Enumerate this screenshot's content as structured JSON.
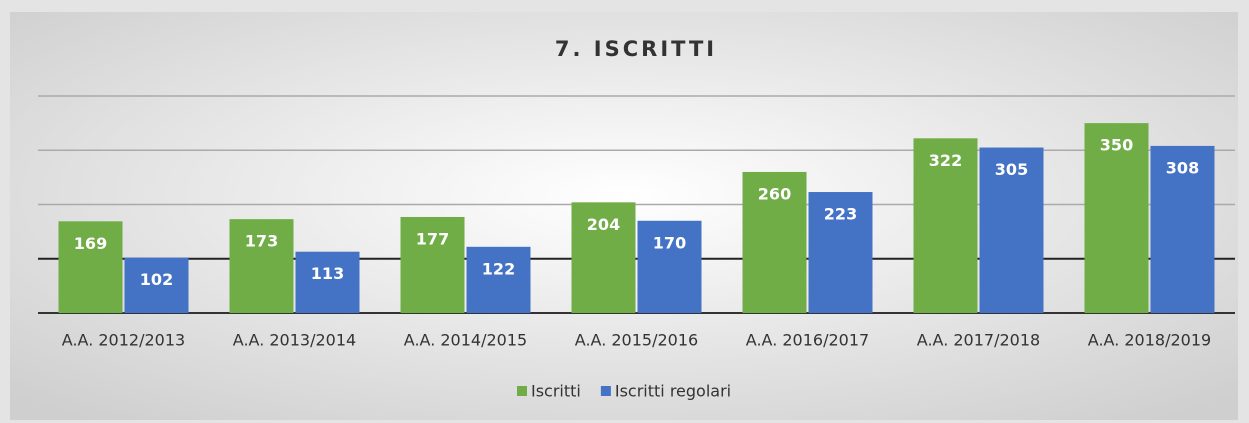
{
  "chart_data": {
    "type": "bar",
    "title": "7. ISCRITTI",
    "categories": [
      "A.A. 2012/2013",
      "A.A. 2013/2014",
      "A.A. 2014/2015",
      "A.A. 2015/2016",
      "A.A. 2016/2017",
      "A.A. 2017/2018",
      "A.A. 2018/2019"
    ],
    "series": [
      {
        "name": "Iscritti",
        "color": "#70ad47",
        "values": [
          169,
          173,
          177,
          204,
          260,
          322,
          350
        ]
      },
      {
        "name": "Iscritti regolari",
        "color": "#4472c4",
        "values": [
          102,
          113,
          122,
          170,
          223,
          305,
          308
        ]
      }
    ],
    "ylim": [
      0,
      400
    ],
    "yticks": [
      0,
      100,
      200,
      300,
      400
    ],
    "grid": true,
    "legend": "bottom"
  }
}
